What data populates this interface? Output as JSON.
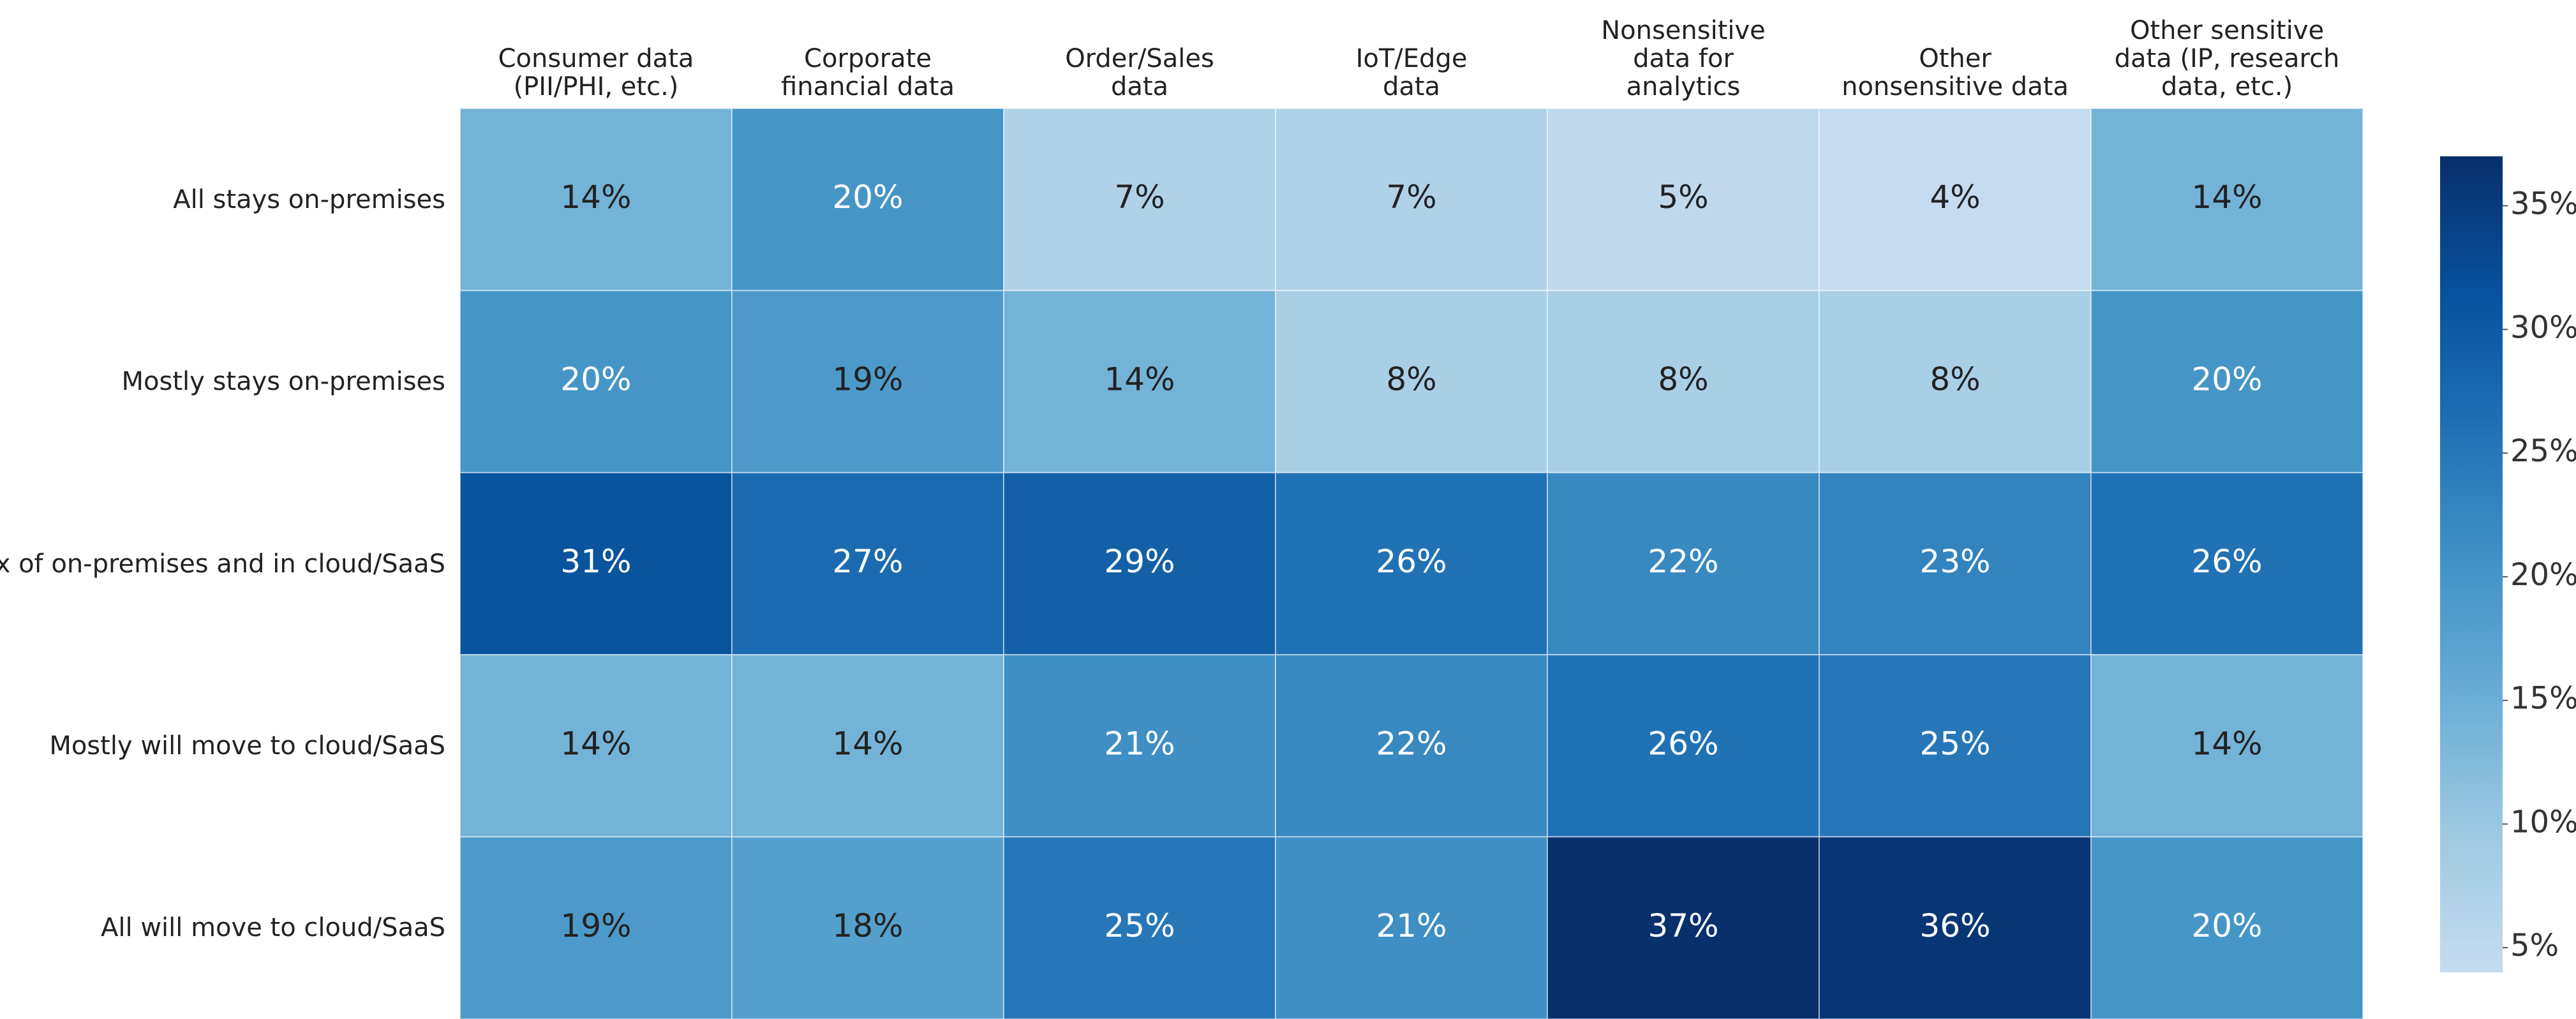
{
  "chart_data": {
    "type": "heatmap",
    "x": [
      "Consumer data\n(PII/PHI, etc.)",
      "Corporate\nfinancial data",
      "Order/Sales\ndata",
      "IoT/Edge\ndata",
      "Nonsensitive\ndata for\nanalytics",
      "Other\nnonsensitive data",
      "Other sensitive\ndata (IP, research\ndata, etc.)"
    ],
    "y": [
      "All stays on-premises",
      "Mostly stays on-premises",
      "Mix of on-premises and in cloud/SaaS",
      "Mostly will move to cloud/SaaS",
      "All will move to cloud/SaaS"
    ],
    "z": [
      [
        14,
        20,
        7,
        7,
        5,
        4,
        14
      ],
      [
        20,
        19,
        14,
        8,
        8,
        8,
        20
      ],
      [
        31,
        27,
        29,
        26,
        22,
        23,
        26
      ],
      [
        14,
        14,
        21,
        22,
        26,
        25,
        14
      ],
      [
        19,
        18,
        25,
        21,
        37,
        36,
        20
      ]
    ],
    "value_labels": [
      [
        "14%",
        "20%",
        "7%",
        "7%",
        "5%",
        "4%",
        "14%"
      ],
      [
        "20%",
        "19%",
        "14%",
        "8%",
        "8%",
        "8%",
        "20%"
      ],
      [
        "31%",
        "27%",
        "29%",
        "26%",
        "22%",
        "23%",
        "26%"
      ],
      [
        "14%",
        "14%",
        "21%",
        "22%",
        "26%",
        "25%",
        "14%"
      ],
      [
        "19%",
        "18%",
        "25%",
        "21%",
        "37%",
        "36%",
        "20%"
      ]
    ],
    "zlim": [
      4,
      37
    ],
    "colorscale": [
      "#c6dbef",
      "#9ecae1",
      "#6baed6",
      "#4292c6",
      "#2171b5",
      "#08519c",
      "#08306b"
    ],
    "zticks": [
      {
        "value": 5,
        "label": "5%"
      },
      {
        "value": 10,
        "label": "10%"
      },
      {
        "value": 15,
        "label": "15%"
      },
      {
        "value": 20,
        "label": "20%"
      },
      {
        "value": 25,
        "label": "25%"
      },
      {
        "value": 30,
        "label": "30%"
      },
      {
        "value": 35,
        "label": "35%"
      }
    ]
  }
}
